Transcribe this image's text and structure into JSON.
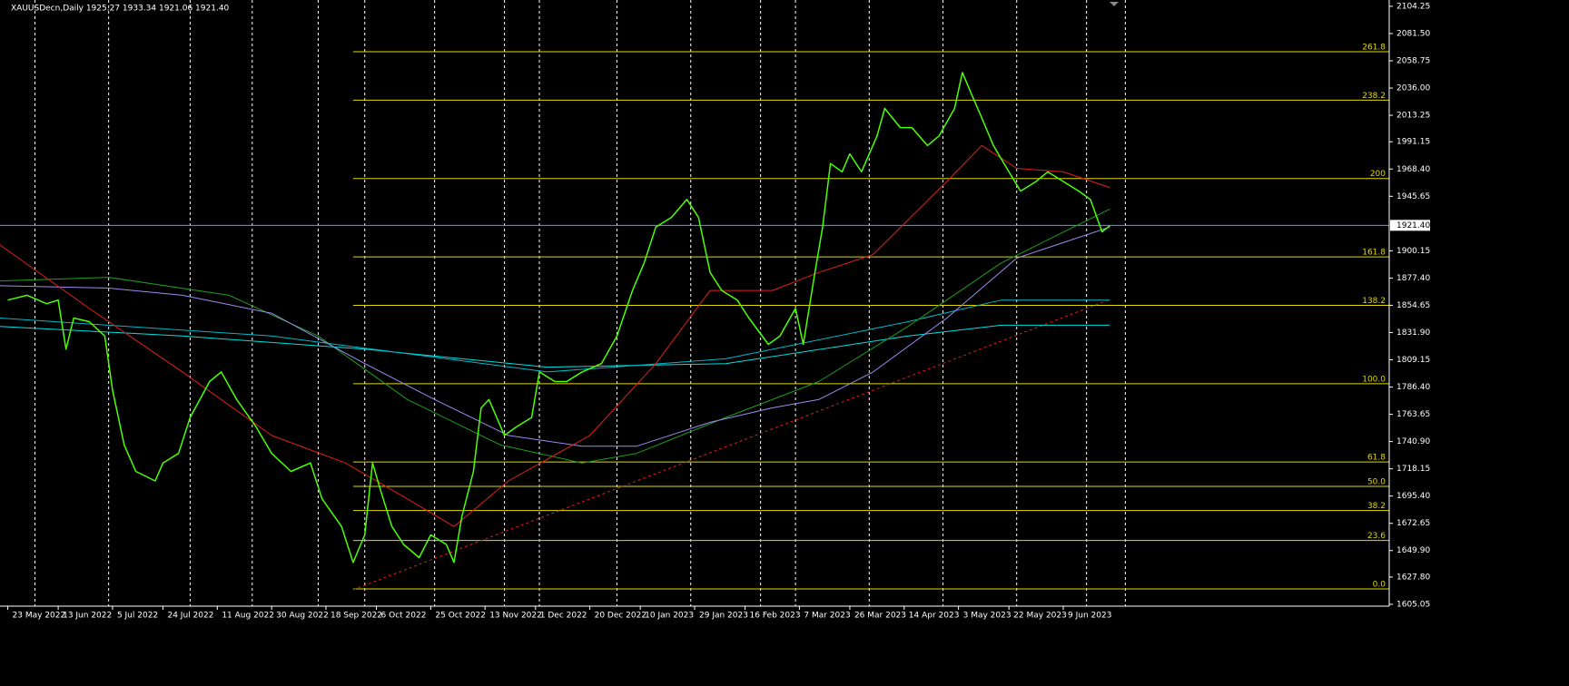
{
  "chart_data": {
    "type": "line",
    "title": "XAUUSDecn,Daily 1925.27 1933.34 1921.06 1921.40",
    "xlim": [
      0,
      358
    ],
    "ylim": [
      1603.5,
      2109.5
    ],
    "grid": true,
    "xticks": [
      {
        "value": 2,
        "label": "23 May 2022"
      },
      {
        "value": 15,
        "label": "13 Jun 2022"
      },
      {
        "value": 29,
        "label": "5 Jul 2022"
      },
      {
        "value": 42,
        "label": "24 Jul 2022"
      },
      {
        "value": 56,
        "label": "11 Aug 2022"
      },
      {
        "value": 70,
        "label": "30 Aug 2022"
      },
      {
        "value": 84,
        "label": "18 Sep 2022"
      },
      {
        "value": 97,
        "label": "6 Oct 2022"
      },
      {
        "value": 111,
        "label": "25 Oct 2022"
      },
      {
        "value": 125,
        "label": "13 Nov 2022"
      },
      {
        "value": 138,
        "label": "1 Dec 2022"
      },
      {
        "value": 152,
        "label": "20 Dec 2022"
      },
      {
        "value": 165,
        "label": "10 Jan 2023"
      },
      {
        "value": 179,
        "label": "29 Jan 2023"
      },
      {
        "value": 192,
        "label": "16 Feb 2023"
      },
      {
        "value": 206,
        "label": "7 Mar 2023"
      },
      {
        "value": 219,
        "label": "26 Mar 2023"
      },
      {
        "value": 233,
        "label": "14 Apr 2023"
      },
      {
        "value": 247,
        "label": "3 May 2023"
      },
      {
        "value": 260,
        "label": "22 May 2023"
      },
      {
        "value": 274,
        "label": "9 Jun 2023"
      }
    ],
    "xgrid": [
      9,
      28,
      49,
      65,
      82,
      94,
      112,
      130,
      139,
      159,
      178,
      196,
      205,
      224,
      243,
      262,
      280,
      290
    ],
    "yticks": [
      2104.25,
      {
        "value": 2081.5,
        "label": "2081.50"
      },
      2058.75,
      {
        "value": 2036,
        "label": "2036.00"
      },
      2013.25,
      1991.15,
      {
        "value": 1968.4,
        "label": "1968.40"
      },
      1945.65,
      1900.15,
      {
        "value": 1877.4,
        "label": "1877.40"
      },
      1854.65,
      {
        "value": 1831.9,
        "label": "1831.90"
      },
      1809.15,
      {
        "value": 1786.4,
        "label": "1786.40"
      },
      1763.65,
      {
        "value": 1740.9,
        "label": "1740.90"
      },
      1718.15,
      {
        "value": 1695.4,
        "label": "1695.40"
      },
      1672.65,
      {
        "value": 1649.9,
        "label": "1649.90"
      },
      {
        "value": 1627.8,
        "label": "1627.80"
      },
      1605.05
    ],
    "current_price": {
      "value": 1921.4,
      "label": "1921.40"
    },
    "fib_levels": [
      {
        "value": 2066.3,
        "label": "261.8"
      },
      {
        "value": 2025.9,
        "label": "238.2"
      },
      {
        "value": 1960.5,
        "label": "200"
      },
      {
        "value": 1895.0,
        "label": "161.8"
      },
      {
        "value": 1854.6,
        "label": "138.2"
      },
      {
        "value": 1789.2,
        "label": "100.0"
      },
      {
        "value": 1723.8,
        "label": "61.8"
      },
      {
        "value": 1703.5,
        "label": "50.0"
      },
      {
        "value": 1683.3,
        "label": "38.2"
      },
      {
        "value": 1658.3,
        "label": "23.6"
      },
      {
        "value": 1617.9,
        "label": "0.0"
      }
    ],
    "fib_color": "#e0d800",
    "trendline": {
      "color": "#e0201a",
      "x": [
        91,
        286
      ],
      "values": [
        1617.2,
        1859.5
      ]
    },
    "series": [
      {
        "color": "#00e0e0",
        "width": 1,
        "x": [
          0,
          47,
          94,
          141,
          187,
          234,
          258,
          286
        ],
        "values": [
          1837,
          1829,
          1818,
          1803,
          1806,
          1829,
          1838,
          1838
        ]
      },
      {
        "color": "#00b8c8",
        "width": 1,
        "x": [
          0,
          70,
          141,
          187,
          234,
          258,
          286
        ],
        "values": [
          1844,
          1829,
          1799,
          1810,
          1841,
          1859,
          1859
        ]
      },
      {
        "color": "#1e9e1e",
        "width": 1,
        "x": [
          0,
          28,
          59,
          82,
          105,
          129,
          150,
          164,
          187,
          211,
          234,
          258,
          286
        ],
        "values": [
          1875,
          1878,
          1863,
          1829,
          1776,
          1738,
          1723,
          1731,
          1761,
          1791,
          1837,
          1890,
          1935
        ]
      },
      {
        "color": "#9a8cf0",
        "width": 1,
        "x": [
          0,
          28,
          47,
          70,
          94,
          112,
          131,
          150,
          164,
          183,
          199,
          211,
          225,
          244,
          262,
          286
        ],
        "values": [
          1871,
          1869,
          1863,
          1848,
          1806,
          1776,
          1746,
          1737,
          1737,
          1757,
          1769,
          1776,
          1799,
          1844,
          1894,
          1920
        ]
      },
      {
        "color": "#e0201a",
        "width": 1,
        "x": [
          0,
          23,
          47,
          70,
          89,
          105,
          117,
          131,
          152,
          169,
          183,
          199,
          211,
          225,
          244,
          253,
          262,
          274,
          286
        ],
        "values": [
          1905,
          1852,
          1799,
          1746,
          1723,
          1693,
          1670,
          1708,
          1746,
          1806,
          1867,
          1867,
          1882,
          1897,
          1958,
          1988,
          1969,
          1966,
          1953
        ]
      },
      {
        "color": "#4cff00",
        "width": 1.5,
        "x": [
          2,
          7,
          12,
          15,
          17,
          19,
          23,
          27,
          29,
          32,
          35,
          40,
          42,
          46,
          49,
          54,
          57,
          61,
          66,
          70,
          75,
          80,
          83,
          88,
          91,
          94,
          96,
          98,
          101,
          104,
          108,
          111,
          115,
          117,
          119,
          122,
          124,
          126,
          130,
          133,
          137,
          139,
          143,
          146,
          150,
          155,
          159,
          163,
          166,
          169,
          173,
          177,
          180,
          183,
          186,
          190,
          193,
          198,
          201,
          205,
          207,
          210,
          212,
          214,
          217,
          219,
          222,
          226,
          228,
          232,
          235,
          239,
          242,
          246,
          248,
          251,
          253,
          256,
          260,
          263,
          267,
          270,
          274,
          278,
          281,
          284,
          286
        ],
        "values": [
          1859,
          1863,
          1856,
          1859,
          1818,
          1844,
          1841,
          1829,
          1784,
          1738,
          1716,
          1708,
          1723,
          1731,
          1761,
          1791,
          1799,
          1776,
          1753,
          1731,
          1716,
          1723,
          1693,
          1670,
          1640,
          1663,
          1723,
          1701,
          1670,
          1655,
          1644,
          1663,
          1655,
          1640,
          1678,
          1716,
          1769,
          1776,
          1746,
          1753,
          1761,
          1799,
          1791,
          1791,
          1799,
          1806,
          1829,
          1867,
          1890,
          1920,
          1928,
          1943,
          1928,
          1882,
          1867,
          1859,
          1844,
          1822,
          1829,
          1852,
          1822,
          1882,
          1920,
          1973,
          1966,
          1981,
          1966,
          1996,
          2019,
          2003,
          2003,
          1988,
          1996,
          2019,
          2049,
          2026,
          2011,
          1988,
          1966,
          1950,
          1958,
          1966,
          1958,
          1950,
          1943,
          1916,
          1921
        ]
      }
    ]
  }
}
